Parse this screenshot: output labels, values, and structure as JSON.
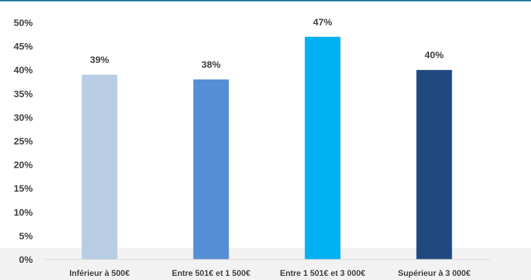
{
  "chart_data": {
    "type": "bar",
    "categories": [
      "Inférieur à 500€",
      "Entre 501€ et 1 500€",
      "Entre 1 501€ et 3 000€",
      "Supérieur à 3 000€"
    ],
    "values": [
      39,
      38,
      47,
      40
    ],
    "data_labels": [
      "39%",
      "38%",
      "47%",
      "40%"
    ],
    "y_ticks": [
      "0%",
      "5%",
      "10%",
      "15%",
      "20%",
      "25%",
      "30%",
      "35%",
      "40%",
      "45%",
      "50%"
    ],
    "ylim": [
      0,
      50
    ],
    "grid": false,
    "legend": "none"
  },
  "colors": {
    "bars": [
      "#b8cce4",
      "#558ed5",
      "#00b0f0",
      "#1f497d"
    ],
    "top_rule": "#1f7a99",
    "axis": "#d9d9d9",
    "text": "#404040"
  }
}
